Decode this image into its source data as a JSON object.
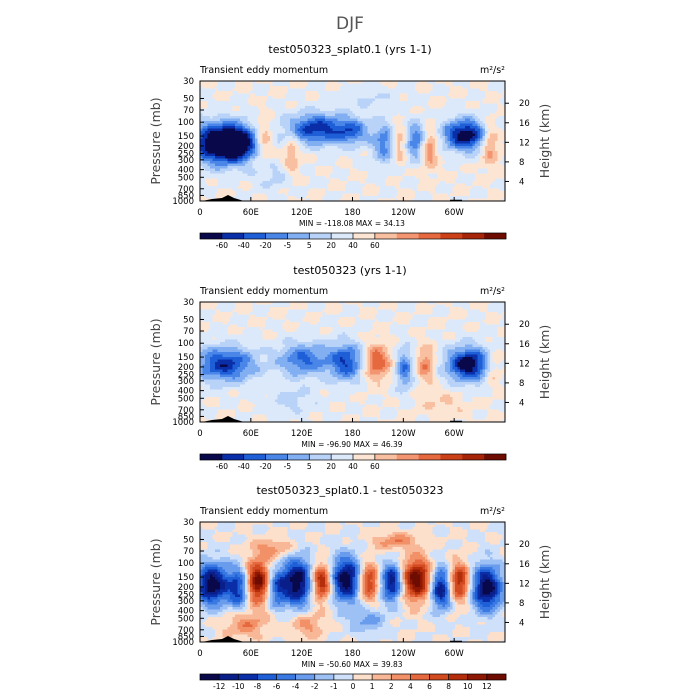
{
  "figure": {
    "title": "DJF"
  },
  "chart_data": [
    {
      "type": "heatmap",
      "title": "test050323_splat0.1 (yrs 1-1)",
      "subtitle_left": "Transient eddy momentum",
      "units": "m²/s²",
      "ylabel": "Pressure (mb)",
      "ylabel_right": "Height (km)",
      "x_ticks": [
        "0",
        "60E",
        "120E",
        "180",
        "120W",
        "60W"
      ],
      "y_ticks": [
        "30",
        "50",
        "70",
        "100",
        "150",
        "200",
        "250",
        "300",
        "400",
        "500",
        "700",
        "850",
        "1000"
      ],
      "height_ticks": [
        "20",
        "16",
        "12",
        "8",
        "4"
      ],
      "stats": "MIN = -118.08   MAX =  34.13",
      "colorbar_ticks": [
        "-60",
        "-40",
        "-20",
        "-5",
        "5",
        "20",
        "40",
        "60"
      ],
      "colorbar_colors": [
        "#08084a",
        "#0a2ea8",
        "#1e5fd8",
        "#4a86e8",
        "#82aef2",
        "#b8d2f8",
        "#dce9fb",
        "#fde5d4",
        "#f8c0a0",
        "#f29570",
        "#e5683e",
        "#cc4018",
        "#a62408",
        "#6e0c02"
      ],
      "fields": [
        {
          "x": 0.06,
          "y": 0.52,
          "sx": 0.07,
          "sy": 0.12,
          "a": -1.0
        },
        {
          "x": 0.12,
          "y": 0.52,
          "sx": 0.05,
          "sy": 0.1,
          "a": -0.75
        },
        {
          "x": 0.21,
          "y": 0.48,
          "sx": 0.02,
          "sy": 0.12,
          "a": 0.4
        },
        {
          "x": 0.38,
          "y": 0.4,
          "sx": 0.07,
          "sy": 0.09,
          "a": -0.8
        },
        {
          "x": 0.5,
          "y": 0.42,
          "sx": 0.04,
          "sy": 0.08,
          "a": -0.5
        },
        {
          "x": 0.3,
          "y": 0.62,
          "sx": 0.02,
          "sy": 0.15,
          "a": 0.3
        },
        {
          "x": 0.61,
          "y": 0.52,
          "sx": 0.03,
          "sy": 0.12,
          "a": -0.55
        },
        {
          "x": 0.65,
          "y": 0.52,
          "sx": 0.02,
          "sy": 0.11,
          "a": 0.45
        },
        {
          "x": 0.71,
          "y": 0.5,
          "sx": 0.025,
          "sy": 0.11,
          "a": -0.6
        },
        {
          "x": 0.75,
          "y": 0.55,
          "sx": 0.02,
          "sy": 0.12,
          "a": 0.5
        },
        {
          "x": 0.87,
          "y": 0.45,
          "sx": 0.05,
          "sy": 0.09,
          "a": -1.0
        },
        {
          "x": 0.95,
          "y": 0.52,
          "sx": 0.02,
          "sy": 0.12,
          "a": 0.45
        },
        {
          "x": 0.25,
          "y": 0.8,
          "sx": 0.05,
          "sy": 0.08,
          "a": -0.2
        },
        {
          "x": 0.55,
          "y": 0.15,
          "sx": 0.08,
          "sy": 0.06,
          "a": -0.15
        }
      ],
      "scale": 85
    },
    {
      "type": "heatmap",
      "title": "test050323 (yrs 1-1)",
      "subtitle_left": "Transient eddy momentum",
      "units": "m²/s²",
      "ylabel": "Pressure (mb)",
      "ylabel_right": "Height (km)",
      "x_ticks": [
        "0",
        "60E",
        "120E",
        "180",
        "120W",
        "60W"
      ],
      "y_ticks": [
        "30",
        "50",
        "70",
        "100",
        "150",
        "200",
        "250",
        "300",
        "400",
        "500",
        "700",
        "850",
        "1000"
      ],
      "height_ticks": [
        "20",
        "16",
        "12",
        "8",
        "4"
      ],
      "stats": "MIN = -96.90   MAX =  46.39",
      "colorbar_ticks": [
        "-60",
        "-40",
        "-20",
        "-5",
        "5",
        "20",
        "40",
        "60"
      ],
      "colorbar_colors": [
        "#08084a",
        "#0a2ea8",
        "#1e5fd8",
        "#4a86e8",
        "#82aef2",
        "#b8d2f8",
        "#dce9fb",
        "#fde5d4",
        "#f8c0a0",
        "#f29570",
        "#e5683e",
        "#cc4018",
        "#a62408",
        "#6e0c02"
      ],
      "fields": [
        {
          "x": 0.08,
          "y": 0.52,
          "sx": 0.07,
          "sy": 0.1,
          "a": -0.8
        },
        {
          "x": 0.34,
          "y": 0.48,
          "sx": 0.06,
          "sy": 0.1,
          "a": -0.6
        },
        {
          "x": 0.48,
          "y": 0.5,
          "sx": 0.04,
          "sy": 0.11,
          "a": -0.7
        },
        {
          "x": 0.58,
          "y": 0.5,
          "sx": 0.03,
          "sy": 0.1,
          "a": 0.6
        },
        {
          "x": 0.67,
          "y": 0.56,
          "sx": 0.02,
          "sy": 0.12,
          "a": -0.55
        },
        {
          "x": 0.74,
          "y": 0.52,
          "sx": 0.02,
          "sy": 0.1,
          "a": 0.45
        },
        {
          "x": 0.88,
          "y": 0.52,
          "sx": 0.05,
          "sy": 0.1,
          "a": -1.0
        },
        {
          "x": 0.96,
          "y": 0.55,
          "sx": 0.02,
          "sy": 0.1,
          "a": 0.3
        },
        {
          "x": 0.3,
          "y": 0.82,
          "sx": 0.06,
          "sy": 0.08,
          "a": -0.2
        },
        {
          "x": 0.8,
          "y": 0.85,
          "sx": 0.06,
          "sy": 0.08,
          "a": 0.15
        }
      ],
      "scale": 85
    },
    {
      "type": "heatmap",
      "title": "test050323_splat0.1 - test050323",
      "subtitle_left": "Transient eddy momentum",
      "units": "m²/s²",
      "ylabel": "Pressure (mb)",
      "ylabel_right": "Height (km)",
      "x_ticks": [
        "0",
        "60E",
        "120E",
        "180",
        "120W",
        "60W"
      ],
      "y_ticks": [
        "30",
        "50",
        "70",
        "100",
        "150",
        "200",
        "250",
        "300",
        "400",
        "500",
        "700",
        "850",
        "1000"
      ],
      "height_ticks": [
        "20",
        "16",
        "12",
        "8",
        "4"
      ],
      "stats": "MIN = -50.60   MAX =  39.83",
      "colorbar_ticks": [
        "-12",
        "-10",
        "-8",
        "-6",
        "-4",
        "-2",
        "-1",
        "0",
        "1",
        "2",
        "4",
        "6",
        "8",
        "10",
        "12"
      ],
      "colorbar_colors": [
        "#08084a",
        "#0a1e8a",
        "#0a2ea8",
        "#1e5fd8",
        "#3a78e2",
        "#6a9cee",
        "#9dc0f5",
        "#cfe1fa",
        "#fde0cc",
        "#f8b898",
        "#f29068",
        "#e5683e",
        "#d24a20",
        "#b42e0c",
        "#8e1804",
        "#6e0c02"
      ],
      "fields": [
        {
          "x": 0.04,
          "y": 0.52,
          "sx": 0.04,
          "sy": 0.12,
          "a": -1.0
        },
        {
          "x": 0.19,
          "y": 0.5,
          "sx": 0.03,
          "sy": 0.12,
          "a": 1.0
        },
        {
          "x": 0.13,
          "y": 0.55,
          "sx": 0.025,
          "sy": 0.12,
          "a": -0.7
        },
        {
          "x": 0.25,
          "y": 0.55,
          "sx": 0.025,
          "sy": 0.11,
          "a": -0.6
        },
        {
          "x": 0.32,
          "y": 0.5,
          "sx": 0.035,
          "sy": 0.14,
          "a": -1.0
        },
        {
          "x": 0.4,
          "y": 0.5,
          "sx": 0.025,
          "sy": 0.11,
          "a": 0.9
        },
        {
          "x": 0.48,
          "y": 0.48,
          "sx": 0.04,
          "sy": 0.13,
          "a": -1.0
        },
        {
          "x": 0.55,
          "y": 0.5,
          "sx": 0.025,
          "sy": 0.11,
          "a": 0.8
        },
        {
          "x": 0.63,
          "y": 0.5,
          "sx": 0.025,
          "sy": 0.11,
          "a": -0.9
        },
        {
          "x": 0.71,
          "y": 0.48,
          "sx": 0.035,
          "sy": 0.12,
          "a": 1.0
        },
        {
          "x": 0.79,
          "y": 0.55,
          "sx": 0.025,
          "sy": 0.12,
          "a": -0.9
        },
        {
          "x": 0.85,
          "y": 0.5,
          "sx": 0.025,
          "sy": 0.11,
          "a": 0.8
        },
        {
          "x": 0.94,
          "y": 0.55,
          "sx": 0.035,
          "sy": 0.13,
          "a": -1.0
        },
        {
          "x": 0.24,
          "y": 0.22,
          "sx": 0.05,
          "sy": 0.06,
          "a": 0.3
        },
        {
          "x": 0.64,
          "y": 0.16,
          "sx": 0.05,
          "sy": 0.05,
          "a": 0.35
        },
        {
          "x": 0.15,
          "y": 0.85,
          "sx": 0.05,
          "sy": 0.08,
          "a": 0.35
        },
        {
          "x": 0.55,
          "y": 0.82,
          "sx": 0.04,
          "sy": 0.08,
          "a": -0.3
        },
        {
          "x": 0.35,
          "y": 0.86,
          "sx": 0.04,
          "sy": 0.08,
          "a": 0.3
        }
      ],
      "scale": 14
    }
  ]
}
